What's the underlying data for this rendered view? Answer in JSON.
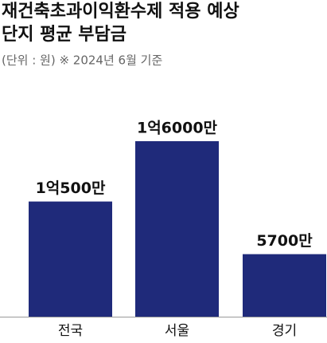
{
  "chart_data": {
    "type": "bar",
    "title": [
      "재건축초과이익환수제 적용 예상",
      "단지 평균 부담금"
    ],
    "subtitle": "(단위 : 원) ※ 2024년 6월 기준",
    "categories": [
      "전국",
      "서울",
      "경기"
    ],
    "values": [
      105000000,
      160000000,
      57000000
    ],
    "value_labels": [
      "1억500만",
      "1억6000만",
      "5700만"
    ],
    "color": "#1f2a7a"
  }
}
